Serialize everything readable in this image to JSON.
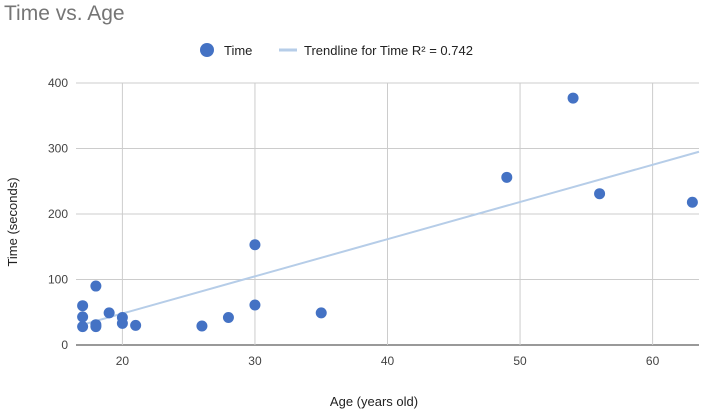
{
  "chart_data": {
    "type": "scatter",
    "title": "Time vs. Age",
    "xlabel": "Age (years old)",
    "ylabel": "Time (seconds)",
    "xlim": [
      16.5,
      63.5
    ],
    "ylim": [
      0,
      400
    ],
    "x_ticks": [
      20,
      30,
      40,
      50,
      60
    ],
    "y_ticks": [
      0,
      100,
      200,
      300,
      400
    ],
    "grid": true,
    "legend_position": "top",
    "series": [
      {
        "name": "Time",
        "color": "#4472c4",
        "points": [
          {
            "x": 17,
            "y": 60
          },
          {
            "x": 17,
            "y": 43
          },
          {
            "x": 17,
            "y": 28
          },
          {
            "x": 18,
            "y": 90
          },
          {
            "x": 18,
            "y": 31
          },
          {
            "x": 18,
            "y": 28
          },
          {
            "x": 19,
            "y": 49
          },
          {
            "x": 20,
            "y": 42
          },
          {
            "x": 20,
            "y": 33
          },
          {
            "x": 21,
            "y": 30
          },
          {
            "x": 26,
            "y": 29
          },
          {
            "x": 28,
            "y": 42
          },
          {
            "x": 30,
            "y": 153
          },
          {
            "x": 30,
            "y": 61
          },
          {
            "x": 35,
            "y": 49
          },
          {
            "x": 49,
            "y": 256
          },
          {
            "x": 54,
            "y": 377
          },
          {
            "x": 56,
            "y": 231
          },
          {
            "x": 63,
            "y": 218
          }
        ]
      }
    ],
    "trendline": {
      "name": "Trendline for Time R² = 0.742",
      "color": "#b6cde8",
      "start": {
        "x": 17,
        "y": 31
      },
      "end": {
        "x": 63.5,
        "y": 295
      }
    }
  }
}
